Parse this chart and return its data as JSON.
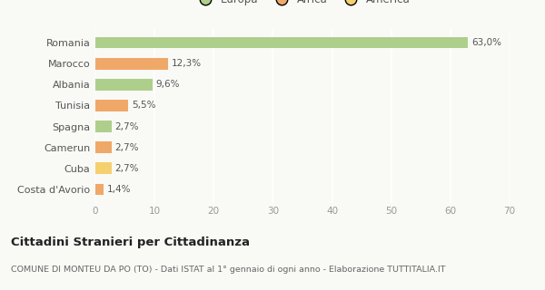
{
  "categories": [
    "Romania",
    "Marocco",
    "Albania",
    "Tunisia",
    "Spagna",
    "Camerun",
    "Cuba",
    "Costa d'Avorio"
  ],
  "values": [
    63.0,
    12.3,
    9.6,
    5.5,
    2.7,
    2.7,
    2.7,
    1.4
  ],
  "labels": [
    "63,0%",
    "12,3%",
    "9,6%",
    "5,5%",
    "2,7%",
    "2,7%",
    "2,7%",
    "1,4%"
  ],
  "colors": [
    "#aecf8b",
    "#f0a868",
    "#aecf8b",
    "#f0a868",
    "#aecf8b",
    "#f0a868",
    "#f5d06e",
    "#f0a868"
  ],
  "legend_labels": [
    "Europa",
    "Africa",
    "America"
  ],
  "legend_colors": [
    "#aecf8b",
    "#f0a868",
    "#f5d06e"
  ],
  "title": "Cittadini Stranieri per Cittadinanza",
  "subtitle": "COMUNE DI MONTEU DA PO (TO) - Dati ISTAT al 1° gennaio di ogni anno - Elaborazione TUTTITALIA.IT",
  "xlim": [
    0,
    70
  ],
  "xticks": [
    0,
    10,
    20,
    30,
    40,
    50,
    60,
    70
  ],
  "background_color": "#f9f9f6",
  "grid_color": "#ffffff",
  "bar_height": 0.55
}
